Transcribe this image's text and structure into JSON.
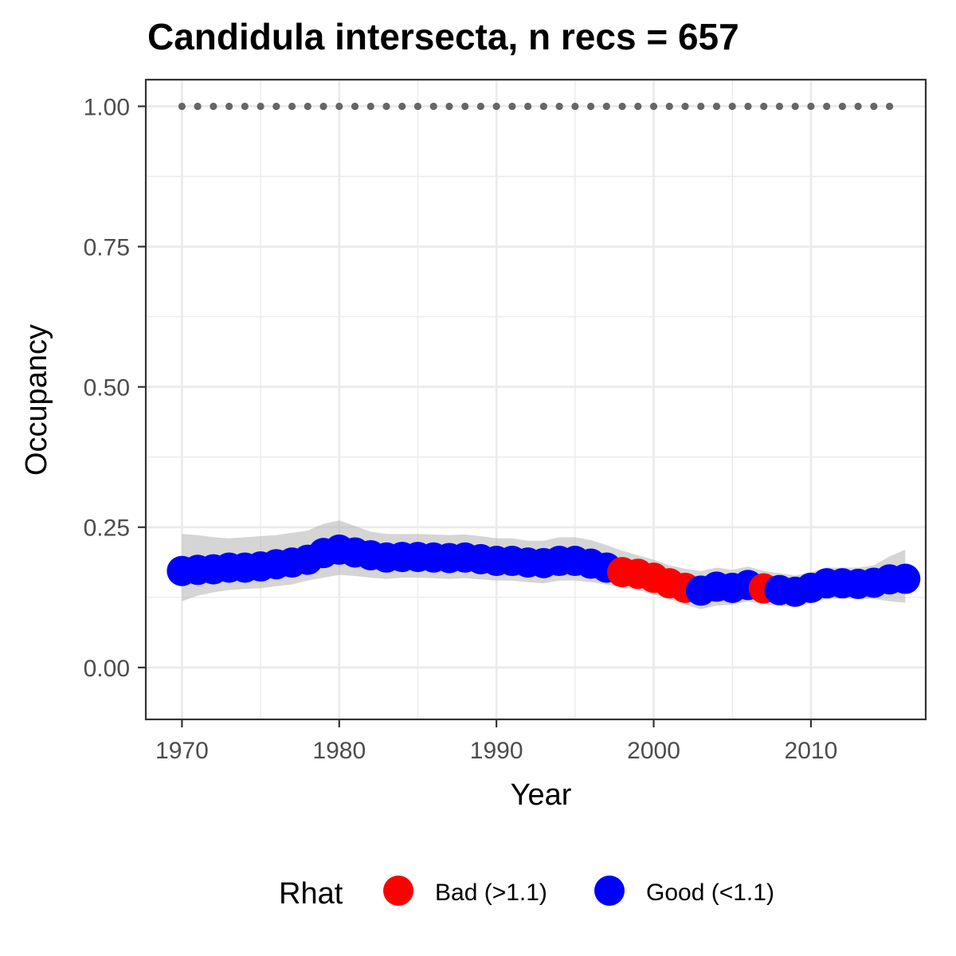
{
  "chart_data": {
    "type": "scatter",
    "title": "Candidula intersecta, n recs = 657",
    "xlabel": "Year",
    "ylabel": "Occupancy",
    "xlim": [
      1967.7,
      2017.3
    ],
    "ylim": [
      -0.0925,
      1.0475
    ],
    "x_ticks": [
      1970,
      1980,
      1990,
      2000,
      2010
    ],
    "x_tick_labels": [
      "1970",
      "1980",
      "1990",
      "2000",
      "2010"
    ],
    "y_ticks": [
      0,
      0.25,
      0.5,
      0.75,
      1.0
    ],
    "y_tick_labels": [
      "0.00",
      "0.25",
      "0.50",
      "0.75",
      "1.00"
    ],
    "grid": true,
    "legend": {
      "title": "Rhat",
      "position": "bottom",
      "entries": [
        {
          "key": "bad",
          "label": "Bad (>1.1)",
          "color": "#ff0000"
        },
        {
          "key": "good",
          "label": "Good (<1.1)",
          "color": "#0000ff"
        }
      ]
    },
    "series": [
      {
        "x": [
          1970,
          1971,
          1972,
          1973,
          1974,
          1975,
          1976,
          1977,
          1978,
          1979,
          1980,
          1981,
          1982,
          1983,
          1984,
          1985,
          1986,
          1987,
          1988,
          1989,
          1990,
          1991,
          1992,
          1993,
          1994,
          1995,
          1996,
          1997,
          1998,
          1999,
          2000,
          2001,
          2002,
          2003,
          2004,
          2005,
          2006,
          2007,
          2008,
          2009,
          2010,
          2011,
          2012,
          2013,
          2014,
          2015,
          2016
        ],
        "y": [
          0.172,
          0.174,
          0.175,
          0.178,
          0.178,
          0.18,
          0.184,
          0.187,
          0.192,
          0.204,
          0.21,
          0.205,
          0.2,
          0.196,
          0.197,
          0.197,
          0.196,
          0.195,
          0.196,
          0.193,
          0.19,
          0.19,
          0.187,
          0.186,
          0.19,
          0.19,
          0.185,
          0.178,
          0.17,
          0.167,
          0.16,
          0.15,
          0.142,
          0.137,
          0.144,
          0.142,
          0.147,
          0.141,
          0.138,
          0.135,
          0.142,
          0.15,
          0.15,
          0.149,
          0.151,
          0.157,
          0.158
        ],
        "rhat": [
          "good",
          "good",
          "good",
          "good",
          "good",
          "good",
          "good",
          "good",
          "good",
          "good",
          "good",
          "good",
          "good",
          "good",
          "good",
          "good",
          "good",
          "good",
          "good",
          "good",
          "good",
          "good",
          "good",
          "good",
          "good",
          "good",
          "good",
          "good",
          "bad",
          "bad",
          "bad",
          "bad",
          "bad",
          "good",
          "good",
          "good",
          "good",
          "bad",
          "good",
          "good",
          "good",
          "good",
          "good",
          "good",
          "good",
          "good",
          "good"
        ],
        "ci_lower": [
          0.118,
          0.128,
          0.134,
          0.138,
          0.14,
          0.141,
          0.145,
          0.148,
          0.155,
          0.16,
          0.165,
          0.163,
          0.16,
          0.158,
          0.16,
          0.16,
          0.159,
          0.158,
          0.159,
          0.157,
          0.155,
          0.155,
          0.152,
          0.15,
          0.155,
          0.155,
          0.152,
          0.148,
          0.142,
          0.138,
          0.13,
          0.122,
          0.112,
          0.104,
          0.11,
          0.112,
          0.118,
          0.112,
          0.11,
          0.108,
          0.115,
          0.122,
          0.123,
          0.122,
          0.122,
          0.118,
          0.115
        ],
        "ci_upper": [
          0.238,
          0.236,
          0.232,
          0.23,
          0.232,
          0.234,
          0.236,
          0.24,
          0.244,
          0.256,
          0.262,
          0.252,
          0.242,
          0.238,
          0.238,
          0.238,
          0.237,
          0.236,
          0.237,
          0.234,
          0.23,
          0.23,
          0.226,
          0.226,
          0.232,
          0.232,
          0.227,
          0.218,
          0.208,
          0.2,
          0.192,
          0.182,
          0.176,
          0.172,
          0.178,
          0.174,
          0.18,
          0.172,
          0.168,
          0.164,
          0.17,
          0.178,
          0.178,
          0.178,
          0.182,
          0.198,
          0.21
        ]
      },
      {
        "x": [
          1970,
          1971,
          1972,
          1973,
          1974,
          1975,
          1976,
          1977,
          1978,
          1979,
          1980,
          1981,
          1982,
          1983,
          1984,
          1985,
          1986,
          1987,
          1988,
          1989,
          1990,
          1991,
          1992,
          1993,
          1994,
          1995,
          1996,
          1997,
          1998,
          1999,
          2000,
          2001,
          2002,
          2003,
          2004,
          2005,
          2006,
          2007,
          2008,
          2009,
          2010,
          2011,
          2012,
          2013,
          2014,
          2015
        ],
        "y": [
          1,
          1,
          1,
          1,
          1,
          1,
          1,
          1,
          1,
          1,
          1,
          1,
          1,
          1,
          1,
          1,
          1,
          1,
          1,
          1,
          1,
          1,
          1,
          1,
          1,
          1,
          1,
          1,
          1,
          1,
          1,
          1,
          1,
          1,
          1,
          1,
          1,
          1,
          1,
          1,
          1,
          1,
          1,
          1,
          1,
          1
        ],
        "color": "#666666",
        "style": "dotted"
      }
    ]
  }
}
